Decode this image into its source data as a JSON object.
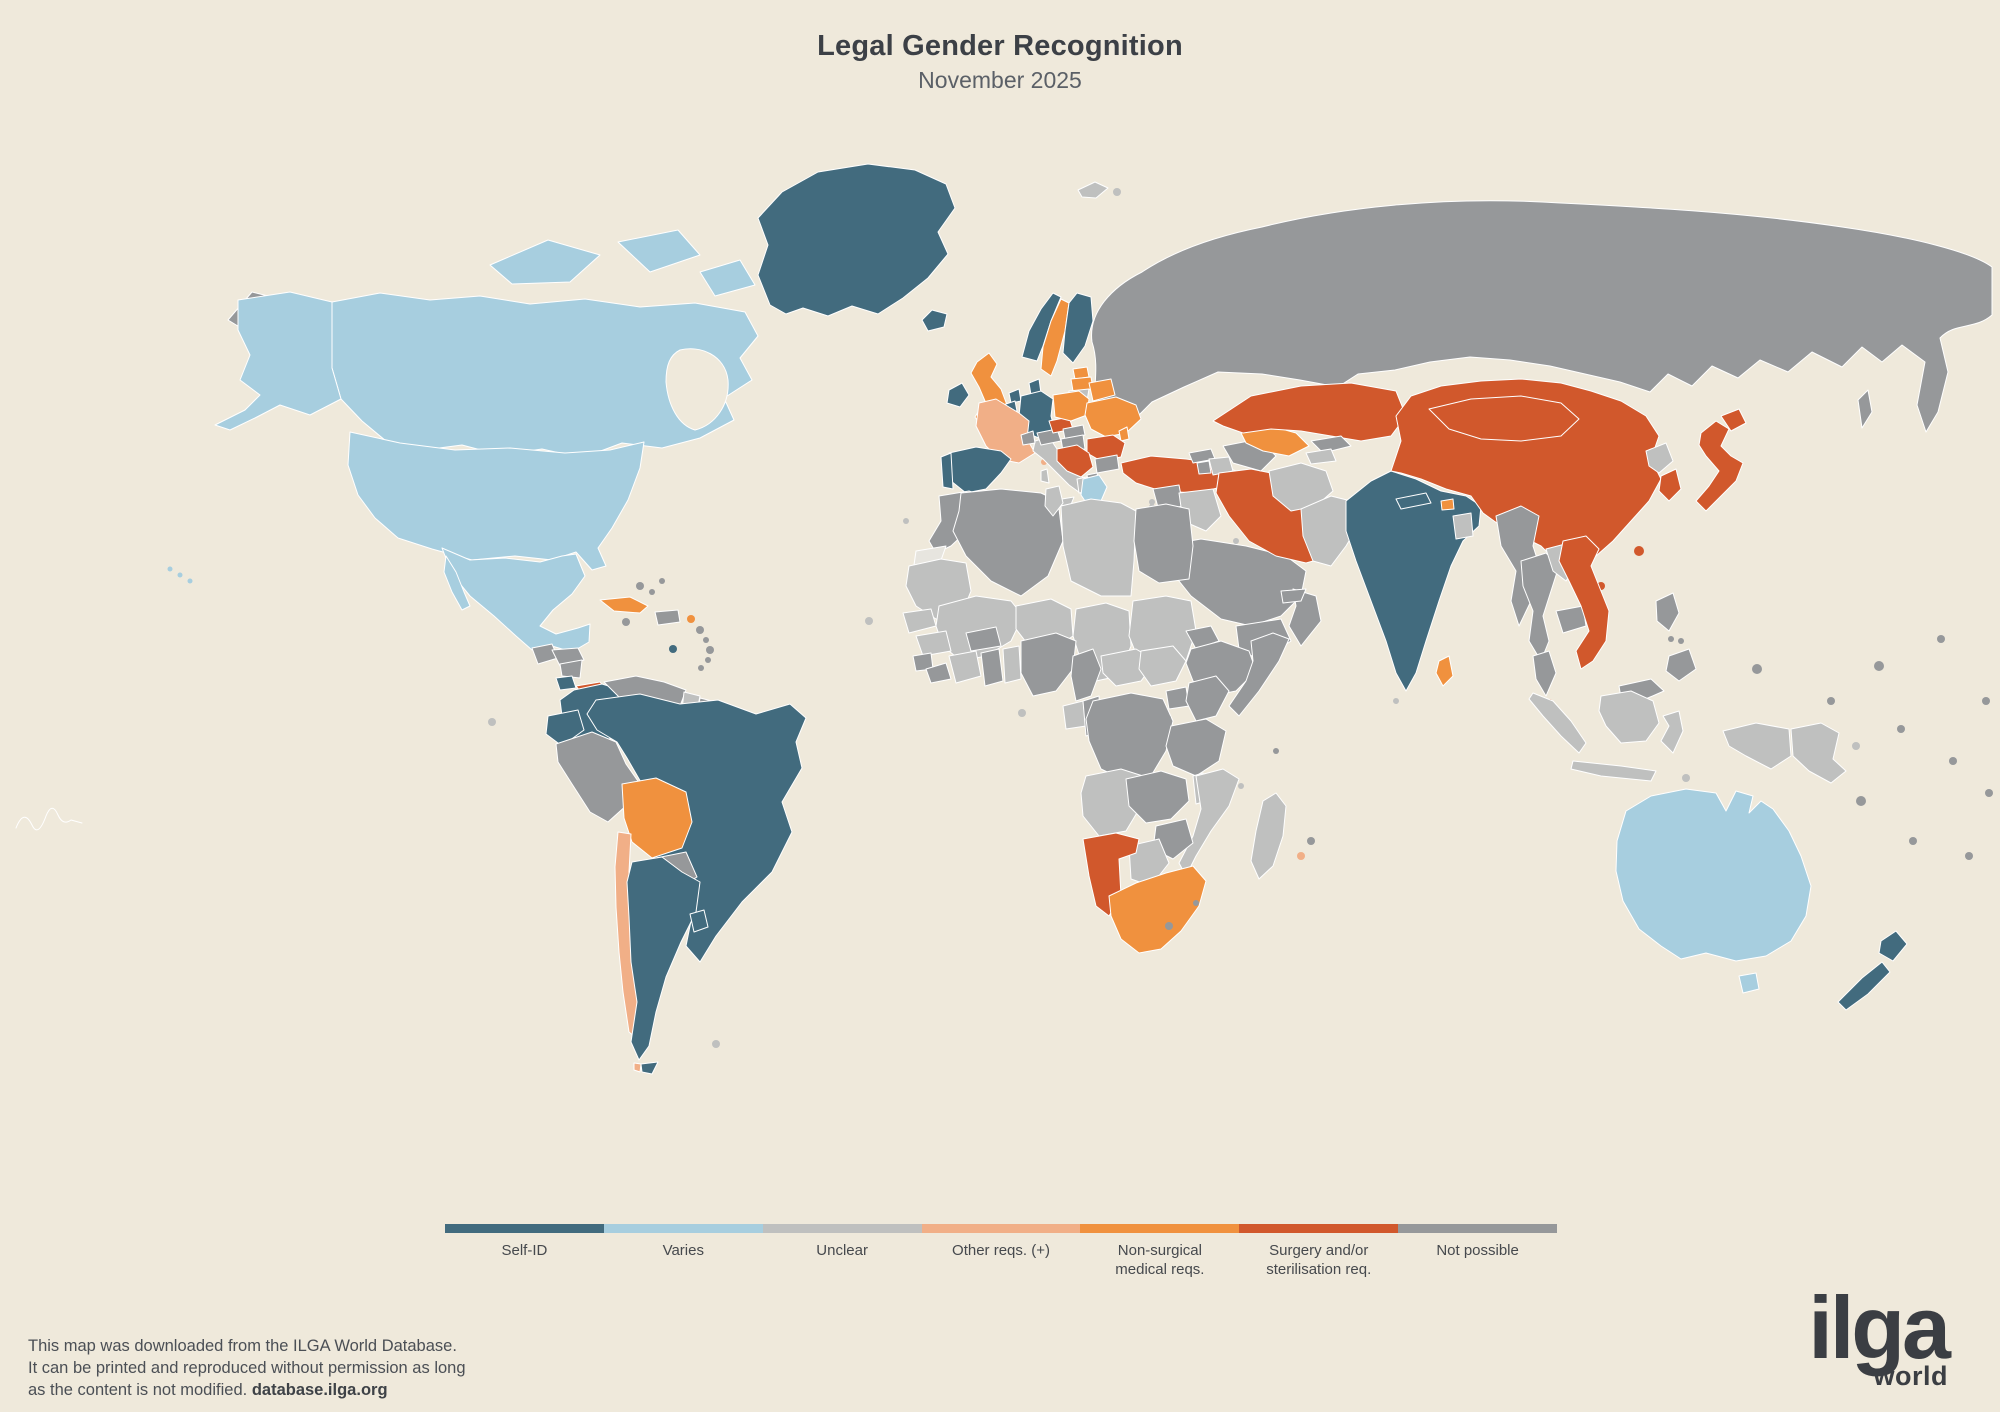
{
  "title": "Legal Gender Recognition",
  "subtitle": "November 2025",
  "footer": {
    "line1": "This map was downloaded from the ILGA World Database.",
    "line2": "It can be printed and reproduced without permission as long",
    "line3_prefix": "as the content is not modified.",
    "line3_link": "database.ilga.org"
  },
  "logo": {
    "main": "ilga",
    "sub": "world"
  },
  "colors": {
    "background": "#EFE9DB",
    "border": "#FFFFFF",
    "title": "#3C4046",
    "subtitle": "#5B6067",
    "footer_text": "#4B4F55",
    "logo": "#3B3E43"
  },
  "legend": {
    "items": [
      {
        "key": "selfid",
        "label": "Self-ID",
        "color": "#426B7E"
      },
      {
        "key": "varies",
        "label": "Varies",
        "color": "#A7CEDF"
      },
      {
        "key": "unclear",
        "label": "Unclear",
        "color": "#BFC0BF"
      },
      {
        "key": "other_reqs",
        "label": "Other reqs. (+)",
        "color": "#F1AF87"
      },
      {
        "key": "nonsurgical",
        "label": "Non-surgical medical reqs.",
        "color": "#F0913E"
      },
      {
        "key": "surgery",
        "label": "Surgery and/or sterilisation req.",
        "color": "#D1582C"
      },
      {
        "key": "not_possible",
        "label": "Not possible",
        "color": "#96989A"
      }
    ],
    "extra": {
      "nodata": "#E7E5DF"
    }
  },
  "regions": {
    "russia": "not_possible",
    "russia-east-wrap": "not_possible",
    "sakhalin": "not_possible",
    "svalbard": "unclear",
    "svalbard-2": "unclear",
    "greenland": "selfid",
    "canada": "varies",
    "canadian-arctic-1": "varies",
    "canadian-arctic-2": "varies",
    "canadian-arctic-3": "varies",
    "alaska": "varies",
    "usa": "varies",
    "mexico": "varies",
    "baja": "varies",
    "guatemala": "not_possible",
    "honduras": "not_possible",
    "nicaragua": "not_possible",
    "costa-rica": "selfid",
    "panama": "surgery",
    "cuba": "nonsurgical",
    "hispaniola": "not_possible",
    "puerto-rico": "nonsurgical",
    "trinidad": "selfid",
    "caribbean-islands": "not_possible",
    "hawaii": "varies",
    "colombia": "selfid",
    "venezuela": "not_possible",
    "guyana": "unclear",
    "suriname": "not_possible",
    "french-guiana": "unclear",
    "ecuador": "selfid",
    "peru": "not_possible",
    "brazil": "selfid",
    "bolivia": "nonsurgical",
    "paraguay": "not_possible",
    "chile": "other_reqs",
    "argentina": "selfid",
    "uruguay": "selfid",
    "tierra-del-fuego": "selfid",
    "tierra-west": "other_reqs",
    "falkland": "unclear",
    "galapagos": "unclear",
    "iceland": "selfid",
    "ireland": "selfid",
    "uk": "nonsurgical",
    "norway": "selfid",
    "sweden": "nonsurgical",
    "finland": "selfid",
    "estonia": "nonsurgical",
    "latvia": "nonsurgical",
    "lithuania": "unclear",
    "denmark": "selfid",
    "netherlands": "selfid",
    "belgium": "selfid",
    "germany": "selfid",
    "france": "other_reqs",
    "corsica": "other_reqs",
    "spain": "selfid",
    "portugal": "selfid",
    "italy": "unclear",
    "sicily": "unclear",
    "sardinia": "unclear",
    "malta": "selfid",
    "switzerland": "not_possible",
    "austria": "not_possible",
    "czechia": "surgery",
    "slovakia": "not_possible",
    "hungary": "not_possible",
    "poland": "nonsurgical",
    "belarus": "nonsurgical",
    "ukraine": "nonsurgical",
    "moldova": "nonsurgical",
    "romania": "surgery",
    "balkans": "surgery",
    "albania": "unclear",
    "macedonia": "not_possible",
    "bulgaria": "not_possible",
    "greece": "varies",
    "crete": "varies",
    "kosovo": "nodata",
    "turkey": "surgery",
    "cyprus": "unclear",
    "georgia": "not_possible",
    "armenia": "not_possible",
    "azerbaijan": "unclear",
    "syria": "not_possible",
    "lebanon": "unclear",
    "israel": "nonsurgical",
    "jordan": "not_possible",
    "iraq": "unclear",
    "saudi-arabia": "not_possible",
    "yemen": "not_possible",
    "oman": "not_possible",
    "uae": "not_possible",
    "qatar": "not_possible",
    "kuwait": "unclear",
    "iran": "surgery",
    "afghanistan": "unclear",
    "pakistan": "unclear",
    "turkmenistan": "not_possible",
    "uzbekistan": "nonsurgical",
    "kazakhstan": "surgery",
    "kyrgyzstan": "not_possible",
    "tajikistan": "unclear",
    "india": "selfid",
    "nepal": "selfid",
    "bhutan": "nonsurgical",
    "bangladesh": "unclear",
    "sri-lanka": "nonsurgical",
    "maldives": "unclear",
    "china": "surgery",
    "mongolia": "surgery",
    "taiwan": "surgery",
    "hainan": "surgery",
    "north-korea": "unclear",
    "south-korea": "surgery",
    "japan": "surgery",
    "hokkaido": "surgery",
    "myanmar": "not_possible",
    "thailand": "not_possible",
    "laos": "unclear",
    "cambodia": "not_possible",
    "vietnam": "surgery",
    "malaysia-peninsula": "not_possible",
    "malaysia-borneo": "not_possible",
    "singapore": "surgery",
    "brunei": "not_possible",
    "sumatra": "unclear",
    "java": "unclear",
    "kalimantan": "unclear",
    "sulawesi": "unclear",
    "west-new-guinea": "unclear",
    "png": "unclear",
    "new-britain": "unclear",
    "timor": "unclear",
    "luzon": "not_possible",
    "mindanao": "not_possible",
    "visayas": "not_possible",
    "australia": "varies",
    "tasmania": "varies",
    "nz-north": "selfid",
    "nz-south": "selfid",
    "pacific-islands": "not_possible",
    "morocco": "not_possible",
    "western-sahara": "nodata",
    "algeria": "not_possible",
    "tunisia": "unclear",
    "libya": "unclear",
    "egypt": "not_possible",
    "mauritania": "unclear",
    "mali": "unclear",
    "niger": "unclear",
    "chad": "unclear",
    "sudan": "unclear",
    "eritrea": "not_possible",
    "djibouti": "not_possible",
    "ethiopia": "not_possible",
    "somalia": "not_possible",
    "senegal": "unclear",
    "guinea": "unclear",
    "sierra-leone": "not_possible",
    "liberia": "not_possible",
    "ivory-coast": "unclear",
    "ghana": "not_possible",
    "togo-benin": "unclear",
    "burkina": "not_possible",
    "nigeria": "not_possible",
    "cameroon": "not_possible",
    "car": "unclear",
    "south-sudan": "unclear",
    "gabon": "unclear",
    "congo": "not_possible",
    "drc": "not_possible",
    "uganda": "not_possible",
    "kenya": "not_possible",
    "rwanda-burundi": "not_possible",
    "tanzania": "not_possible",
    "angola": "unclear",
    "zambia": "not_possible",
    "malawi": "unclear",
    "mozambique": "unclear",
    "zimbabwe": "not_possible",
    "botswana": "unclear",
    "namibia": "surgery",
    "south-africa": "nonsurgical",
    "lesotho": "not_possible",
    "eswatini": "not_possible",
    "madagascar": "unclear",
    "cape-verde": "unclear",
    "canary": "unclear",
    "sao-tome": "unclear",
    "comoros": "unclear",
    "mauritius": "not_possible",
    "reunion": "other_reqs",
    "seychelles": "not_possible"
  }
}
